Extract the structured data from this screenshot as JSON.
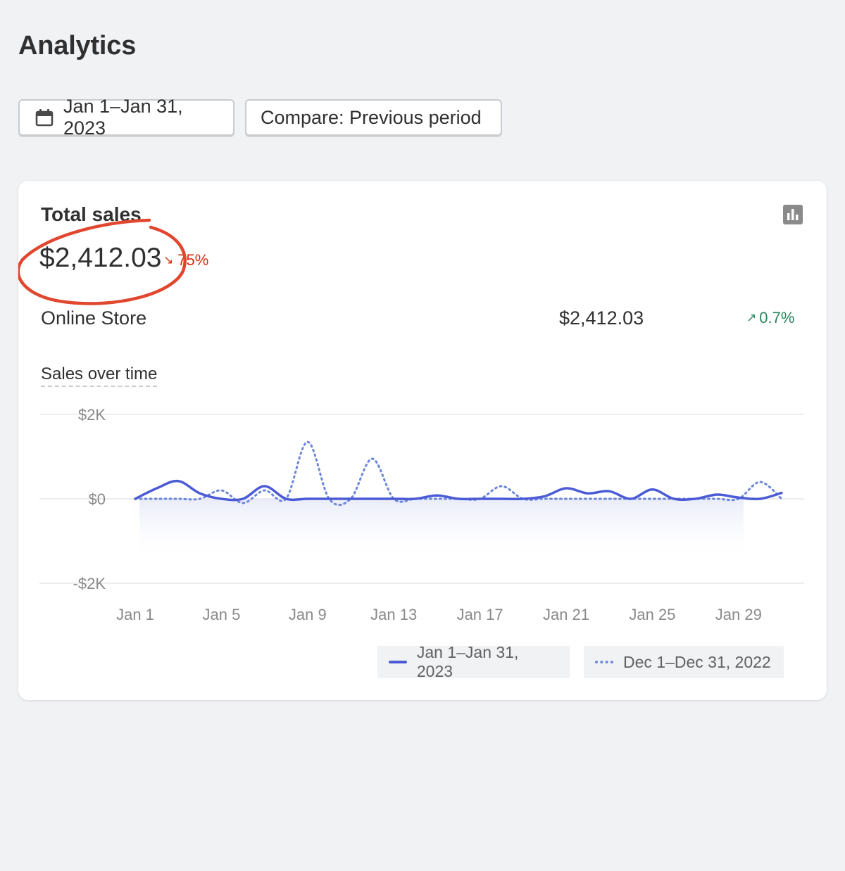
{
  "page": {
    "title": "Analytics"
  },
  "toolbar": {
    "date_range_label": "Jan 1–Jan 31, 2023",
    "compare_label": "Compare: Previous period"
  },
  "card": {
    "title": "Total sales",
    "total_value": "$2,412.03",
    "total_delta": "75%",
    "total_delta_direction": "down",
    "breakdown": [
      {
        "label": "Online Store",
        "value": "$2,412.03",
        "delta": "0.7%",
        "delta_direction": "up"
      }
    ],
    "chart_heading": "Sales over time"
  },
  "colors": {
    "current_series": "#4b5bd6",
    "previous_series": "#6d87d8",
    "negative_delta": "#d72c0d",
    "positive_delta": "#29845a",
    "annotation_circle": "#e0472e"
  },
  "icons": {
    "date_button": "calendar-icon",
    "chart_type": "bar-chart-icon"
  },
  "chart_data": {
    "type": "line",
    "title": "Sales over time",
    "x": [
      1,
      2,
      3,
      4,
      5,
      6,
      7,
      8,
      9,
      10,
      11,
      12,
      13,
      14,
      15,
      16,
      17,
      18,
      19,
      20,
      21,
      22,
      23,
      24,
      25,
      26,
      27,
      28,
      29,
      30,
      31
    ],
    "x_tick_labels": [
      "Jan 1",
      "Jan 5",
      "Jan 9",
      "Jan 13",
      "Jan 17",
      "Jan 21",
      "Jan 25",
      "Jan 29"
    ],
    "x_tick_positions": [
      1,
      5,
      9,
      13,
      17,
      21,
      25,
      29
    ],
    "y_tick_labels": [
      "$2K",
      "$0",
      "-$2K"
    ],
    "y_tick_values": [
      2000,
      0,
      -2000
    ],
    "ylim": [
      -2000,
      2000
    ],
    "grid": true,
    "legend_position": "bottom-right",
    "series": [
      {
        "name": "Jan 1–Jan 31, 2023",
        "style": "solid",
        "values": [
          0,
          250,
          420,
          130,
          0,
          0,
          300,
          0,
          0,
          0,
          0,
          0,
          0,
          0,
          80,
          0,
          0,
          0,
          0,
          60,
          250,
          130,
          180,
          0,
          220,
          0,
          0,
          100,
          30,
          0,
          140
        ]
      },
      {
        "name": "Dec 1–Dec 31, 2022",
        "style": "dotted",
        "values": [
          0,
          0,
          0,
          0,
          200,
          -100,
          200,
          0,
          1350,
          0,
          0,
          950,
          0,
          0,
          0,
          0,
          0,
          300,
          0,
          0,
          0,
          0,
          0,
          0,
          0,
          0,
          0,
          0,
          0,
          400,
          0
        ]
      }
    ]
  }
}
